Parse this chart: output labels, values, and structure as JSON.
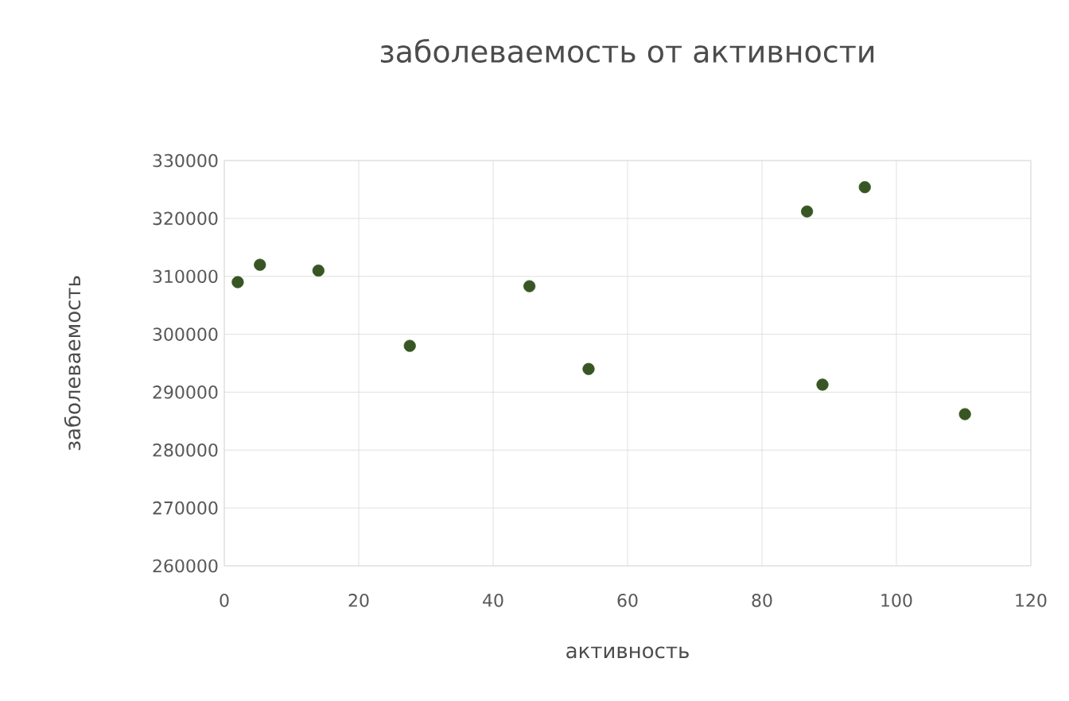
{
  "chart_data": {
    "type": "scatter",
    "title": "заболеваемость от активности",
    "xlabel": "активность",
    "ylabel": "заболеваемость",
    "series": [
      {
        "color": "#375623",
        "x": [
          2,
          5.3,
          14,
          27.6,
          45.4,
          54.2,
          86.7,
          89,
          95.3,
          110.2
        ],
        "values": [
          309000,
          312000,
          311000,
          298000,
          308300,
          294000,
          321200,
          291300,
          325400,
          286200
        ]
      }
    ],
    "xlim": [
      0,
      120
    ],
    "xticks": [
      0,
      20,
      40,
      60,
      80,
      100,
      120
    ],
    "ylim": [
      260000,
      330000
    ],
    "yticks": [
      260000,
      270000,
      280000,
      290000,
      300000,
      310000,
      320000,
      330000
    ],
    "grid": true
  }
}
